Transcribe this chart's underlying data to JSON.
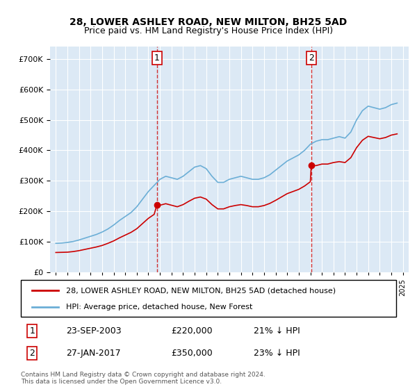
{
  "title": "28, LOWER ASHLEY ROAD, NEW MILTON, BH25 5AD",
  "subtitle": "Price paid vs. HM Land Registry's House Price Index (HPI)",
  "legend_line1": "28, LOWER ASHLEY ROAD, NEW MILTON, BH25 5AD (detached house)",
  "legend_line2": "HPI: Average price, detached house, New Forest",
  "annotation1_label": "1",
  "annotation1_date": "23-SEP-2003",
  "annotation1_price": "£220,000",
  "annotation1_hpi": "21% ↓ HPI",
  "annotation2_label": "2",
  "annotation2_date": "27-JAN-2017",
  "annotation2_price": "£350,000",
  "annotation2_hpi": "23% ↓ HPI",
  "footnote": "Contains HM Land Registry data © Crown copyright and database right 2024.\nThis data is licensed under the Open Government Licence v3.0.",
  "hpi_color": "#6baed6",
  "price_color": "#cc0000",
  "marker1_x": 2003.73,
  "marker1_y": 220000,
  "marker2_x": 2017.08,
  "marker2_y": 350000,
  "vline1_x": 2003.73,
  "vline2_x": 2017.08,
  "ylim": [
    0,
    740000
  ],
  "xlim_start": 1994.5,
  "xlim_end": 2025.5,
  "background_color": "#dce9f5",
  "plot_bg_color": "#dce9f5"
}
